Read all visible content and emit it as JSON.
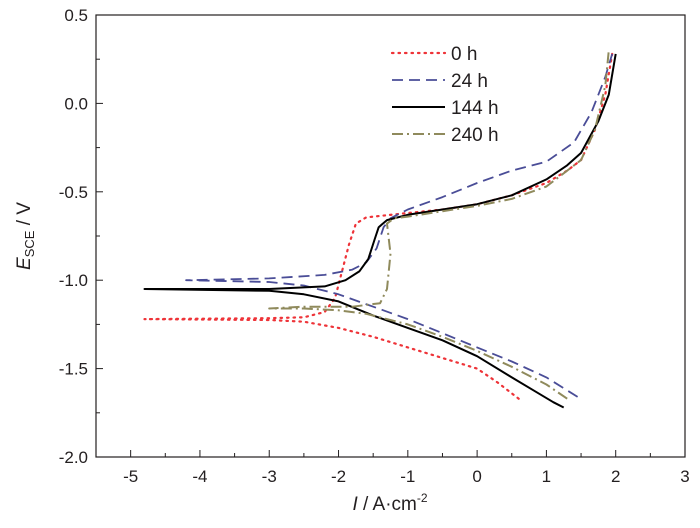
{
  "chart_data": {
    "type": "line",
    "xlabel": {
      "symbol": "I",
      "unit": " / A·cm",
      "sup": "-2"
    },
    "ylabel": {
      "symbol": "E",
      "sub": "SCE",
      "unit": " / V"
    },
    "xlim": [
      -5.5,
      3
    ],
    "ylim": [
      -2.0,
      0.5
    ],
    "xticks": [
      -5,
      -4,
      -3,
      -2,
      -1,
      0,
      1,
      2,
      3
    ],
    "yticks": [
      -2.0,
      -1.5,
      -1.0,
      -0.5,
      0.0,
      0.5
    ],
    "xtick_labels": [
      "-5",
      "-4",
      "-3",
      "-2",
      "-1",
      "0",
      "1",
      "2",
      "3"
    ],
    "ytick_labels": [
      "-2.0",
      "-1.5",
      "-1.0",
      "-0.5",
      "0.0",
      "0.5"
    ],
    "grid": false,
    "legend_position": "top-center",
    "series": [
      {
        "name": "0 h",
        "color": "#ee3338",
        "style": "dotted",
        "points": [
          [
            0.6,
            -1.67
          ],
          [
            0.3,
            -1.58
          ],
          [
            0,
            -1.5
          ],
          [
            -0.5,
            -1.44
          ],
          [
            -1,
            -1.38
          ],
          [
            -1.5,
            -1.32
          ],
          [
            -2,
            -1.27
          ],
          [
            -2.5,
            -1.235
          ],
          [
            -3,
            -1.225
          ],
          [
            -4.8,
            -1.22
          ],
          [
            -3,
            -1.215
          ],
          [
            -2.5,
            -1.21
          ],
          [
            -2.2,
            -1.18
          ],
          [
            -2.05,
            -1.1
          ],
          [
            -1.95,
            -0.95
          ],
          [
            -1.85,
            -0.8
          ],
          [
            -1.75,
            -0.68
          ],
          [
            -1.6,
            -0.645
          ],
          [
            -1.0,
            -0.62
          ],
          [
            -0.5,
            -0.6
          ],
          [
            0,
            -0.57
          ],
          [
            0.5,
            -0.52
          ],
          [
            1.0,
            -0.45
          ],
          [
            1.3,
            -0.38
          ],
          [
            1.5,
            -0.32
          ],
          [
            1.7,
            -0.15
          ],
          [
            1.85,
            0.05
          ],
          [
            1.95,
            0.28
          ]
        ]
      },
      {
        "name": "24 h",
        "color": "#4a4d97",
        "style": "dashed",
        "points": [
          [
            1.45,
            -1.66
          ],
          [
            1.0,
            -1.55
          ],
          [
            0.5,
            -1.46
          ],
          [
            0,
            -1.38
          ],
          [
            -0.5,
            -1.3
          ],
          [
            -1,
            -1.22
          ],
          [
            -1.5,
            -1.15
          ],
          [
            -2,
            -1.08
          ],
          [
            -2.5,
            -1.03
          ],
          [
            -3,
            -1.01
          ],
          [
            -4.2,
            -1.0
          ],
          [
            -3,
            -0.99
          ],
          [
            -2.2,
            -0.97
          ],
          [
            -1.8,
            -0.94
          ],
          [
            -1.6,
            -0.9
          ],
          [
            -1.45,
            -0.82
          ],
          [
            -1.35,
            -0.7
          ],
          [
            -1.25,
            -0.65
          ],
          [
            -1.0,
            -0.6
          ],
          [
            -0.5,
            -0.53
          ],
          [
            0,
            -0.45
          ],
          [
            0.5,
            -0.38
          ],
          [
            1.0,
            -0.33
          ],
          [
            1.4,
            -0.22
          ],
          [
            1.65,
            -0.05
          ],
          [
            1.85,
            0.15
          ],
          [
            1.95,
            0.28
          ]
        ]
      },
      {
        "name": "144 h",
        "color": "#000000",
        "style": "solid",
        "points": [
          [
            1.25,
            -1.72
          ],
          [
            1.1,
            -1.69
          ],
          [
            0.8,
            -1.62
          ],
          [
            0.5,
            -1.55
          ],
          [
            0,
            -1.43
          ],
          [
            -0.5,
            -1.34
          ],
          [
            -1,
            -1.27
          ],
          [
            -1.5,
            -1.2
          ],
          [
            -2,
            -1.12
          ],
          [
            -2.5,
            -1.08
          ],
          [
            -3,
            -1.06
          ],
          [
            -4.8,
            -1.05
          ],
          [
            -3,
            -1.05
          ],
          [
            -2.2,
            -1.035
          ],
          [
            -1.9,
            -1.0
          ],
          [
            -1.7,
            -0.95
          ],
          [
            -1.57,
            -0.88
          ],
          [
            -1.48,
            -0.77
          ],
          [
            -1.42,
            -0.7
          ],
          [
            -1.3,
            -0.66
          ],
          [
            -1.0,
            -0.63
          ],
          [
            -0.5,
            -0.6
          ],
          [
            0,
            -0.57
          ],
          [
            0.5,
            -0.52
          ],
          [
            1.0,
            -0.43
          ],
          [
            1.3,
            -0.35
          ],
          [
            1.5,
            -0.28
          ],
          [
            1.75,
            -0.1
          ],
          [
            1.9,
            0.05
          ],
          [
            2.0,
            0.28
          ]
        ]
      },
      {
        "name": "240 h",
        "color": "#8f8a5c",
        "style": "dashdot",
        "points": [
          [
            1.3,
            -1.67
          ],
          [
            1.0,
            -1.59
          ],
          [
            0.5,
            -1.49
          ],
          [
            0,
            -1.4
          ],
          [
            -0.5,
            -1.32
          ],
          [
            -1,
            -1.25
          ],
          [
            -1.6,
            -1.19
          ],
          [
            -2.0,
            -1.17
          ],
          [
            -2.5,
            -1.16
          ],
          [
            -3,
            -1.16
          ],
          [
            -2.5,
            -1.15
          ],
          [
            -1.8,
            -1.15
          ],
          [
            -1.4,
            -1.13
          ],
          [
            -1.3,
            -1.05
          ],
          [
            -1.25,
            -0.85
          ],
          [
            -1.3,
            -0.68
          ],
          [
            -1.2,
            -0.65
          ],
          [
            -1.0,
            -0.64
          ],
          [
            -0.5,
            -0.61
          ],
          [
            0,
            -0.58
          ],
          [
            0.5,
            -0.54
          ],
          [
            1.0,
            -0.47
          ],
          [
            1.5,
            -0.32
          ],
          [
            1.7,
            -0.15
          ],
          [
            1.85,
            0.1
          ],
          [
            1.9,
            0.3
          ]
        ]
      }
    ]
  }
}
